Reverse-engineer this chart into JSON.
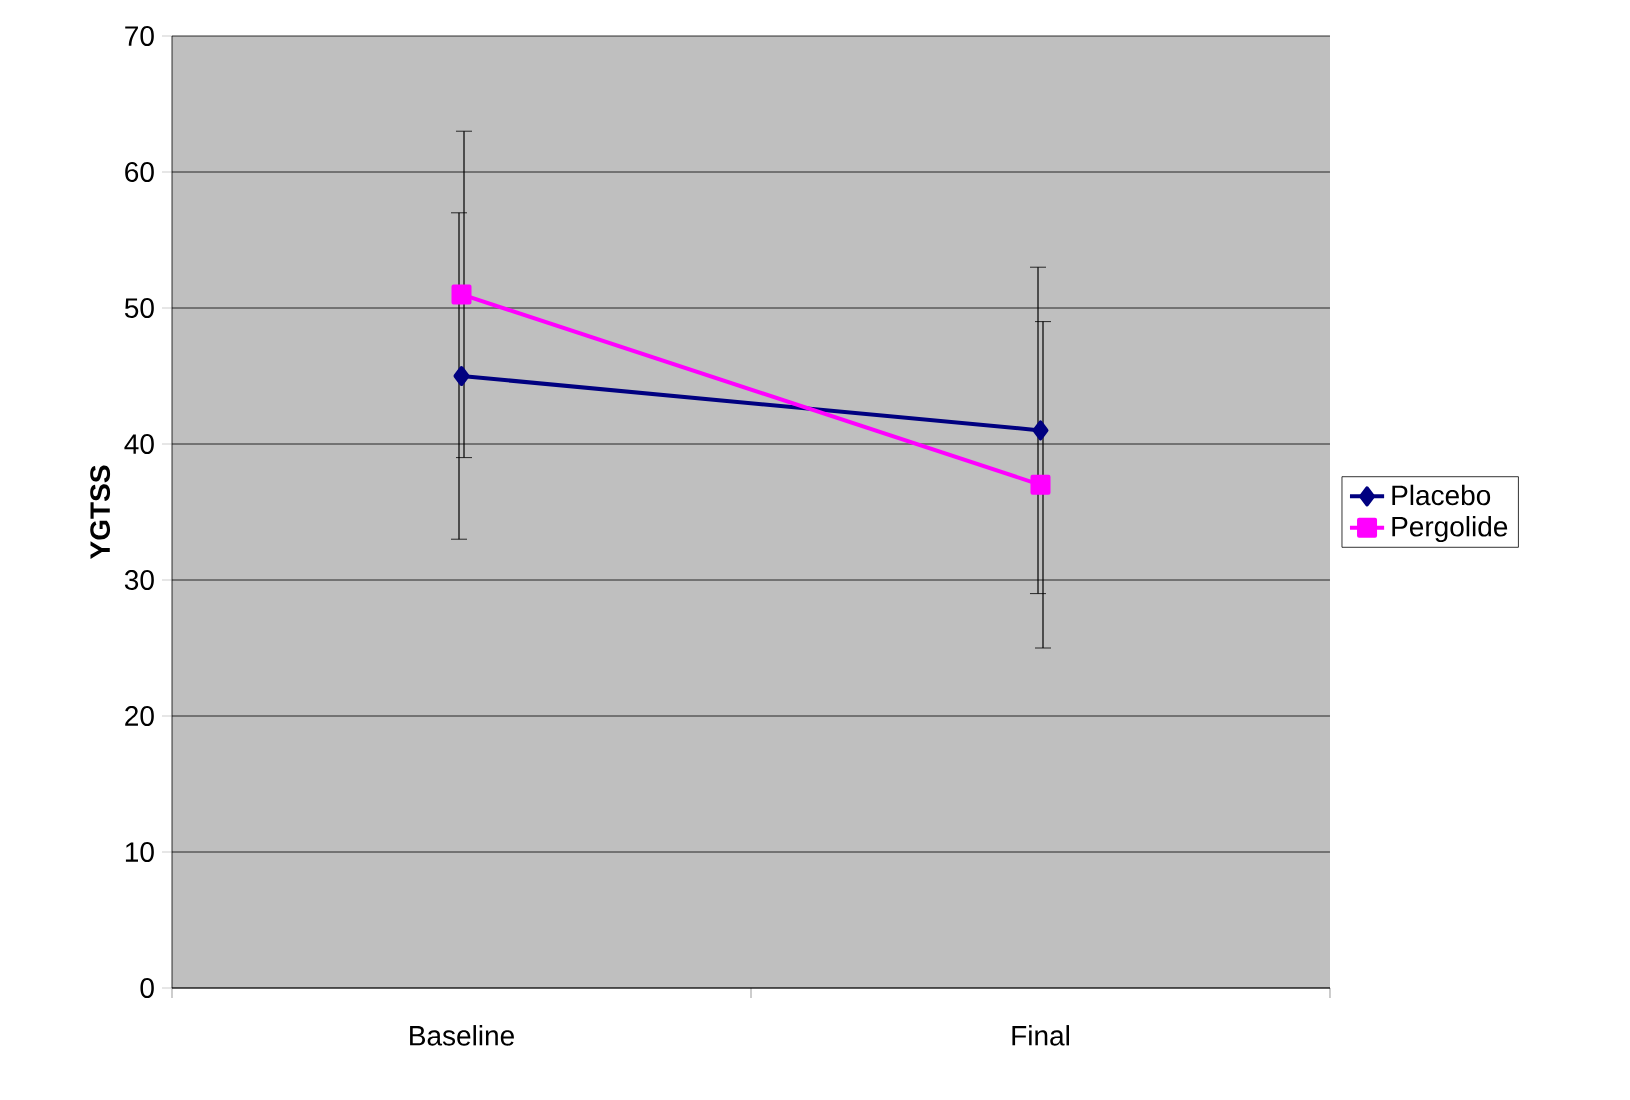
{
  "chart_data": {
    "type": "line",
    "ylabel": "YGTSS",
    "categories": [
      "Baseline",
      "Final"
    ],
    "series": [
      {
        "name": "Placebo",
        "color": "#000080",
        "values": [
          45,
          41
        ],
        "errors": [
          12,
          12
        ],
        "marker": "diamond"
      },
      {
        "name": "Pergolide",
        "color": "#ff00ff",
        "values": [
          51,
          37
        ],
        "errors": [
          12,
          12
        ],
        "marker": "square"
      }
    ],
    "ylim": [
      0,
      70
    ],
    "yticks": [
      0,
      10,
      20,
      30,
      40,
      50,
      60,
      70
    ],
    "grid": "y",
    "legend": "right",
    "line_style": "solid"
  }
}
